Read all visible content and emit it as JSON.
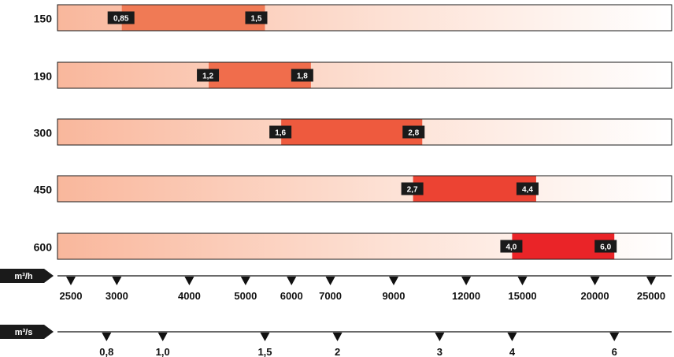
{
  "chart_data": {
    "type": "bar",
    "categories": [
      "150",
      "190",
      "300",
      "450",
      "600"
    ],
    "ranges": [
      {
        "category": "150",
        "from_m3s": 0.85,
        "to_m3s": 1.5,
        "from_label": "0,85",
        "to_label": "1,5",
        "color": "#f07a55"
      },
      {
        "category": "190",
        "from_m3s": 1.2,
        "to_m3s": 1.8,
        "from_label": "1,2",
        "to_label": "1,8",
        "color": "#f06d4c"
      },
      {
        "category": "300",
        "from_m3s": 1.6,
        "to_m3s": 2.8,
        "from_label": "1,6",
        "to_label": "2,8",
        "color": "#ee5a3e"
      },
      {
        "category": "450",
        "from_m3s": 2.7,
        "to_m3s": 4.4,
        "from_label": "2,7",
        "to_label": "4,4",
        "color": "#ec4333"
      },
      {
        "category": "600",
        "from_m3s": 4.0,
        "to_m3s": 6.0,
        "from_label": "4,0",
        "to_label": "6,0",
        "color": "#ea2428"
      }
    ],
    "axis_m3h": {
      "unit_label": "m³/h",
      "ticks": [
        2500,
        3000,
        4000,
        5000,
        6000,
        7000,
        9000,
        12000,
        15000,
        20000,
        25000
      ],
      "tick_labels": [
        "2500",
        "3000",
        "4000",
        "5000",
        "6000",
        "7000",
        "9000",
        "12000",
        "15000",
        "20000",
        "25000"
      ]
    },
    "axis_m3s": {
      "unit_label": "m³/s",
      "ticks": [
        0.8,
        1.0,
        1.5,
        2,
        3,
        4,
        6
      ],
      "tick_labels": [
        "0,8",
        "1,0",
        "1,5",
        "2",
        "3",
        "4",
        "6"
      ]
    },
    "scale": "log",
    "grid": false
  },
  "colors": {
    "bar_gradient_start": "#f9b79c",
    "bar_gradient_end": "#ffffff",
    "tag_bg": "#1a1a1a",
    "axis_line": "#111111"
  }
}
